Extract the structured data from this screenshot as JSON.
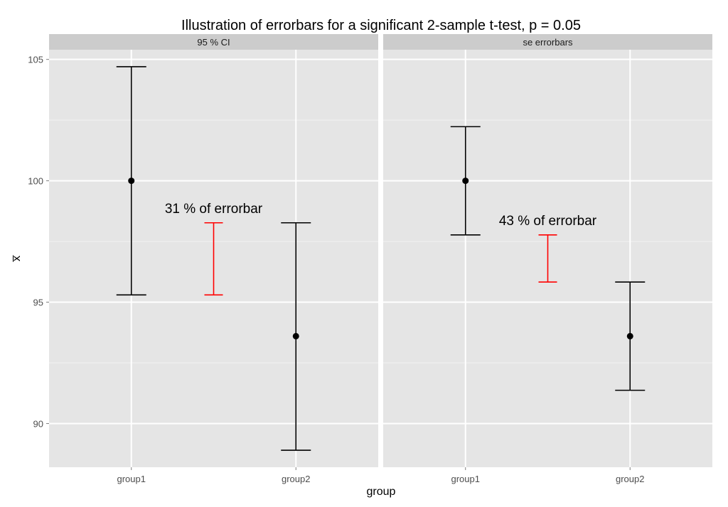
{
  "chart_data": {
    "type": "errorbar",
    "title": "Illustration of errorbars for a significant 2-sample t-test, p = 0.05",
    "xlabel": "group",
    "ylabel": "x̅",
    "ylim": [
      88.2,
      105.4
    ],
    "yticks": [
      90,
      95,
      100,
      105
    ],
    "categories": [
      "group1",
      "group2"
    ],
    "grid": true,
    "colors": {
      "panel_bg": "#e5e5e5",
      "strip_bg": "#cccccc",
      "grid_major": "#ffffff",
      "grid_minor": "#f2f2f2",
      "bar": "#000000",
      "diff": "#ff0000"
    },
    "panels": [
      {
        "strip": "95 % CI",
        "points": [
          {
            "x": "group1",
            "mean": 100.0,
            "lower": 95.3,
            "upper": 104.7
          },
          {
            "x": "group2",
            "mean": 93.6,
            "lower": 88.9,
            "upper": 98.27
          }
        ],
        "difference_bar": {
          "x": 1.5,
          "lower": 95.3,
          "upper": 98.27
        },
        "annotation": {
          "text": "31 % of errorbar",
          "x": 1.5,
          "y": 98.85
        }
      },
      {
        "strip": "se errorbars",
        "points": [
          {
            "x": "group1",
            "mean": 100.0,
            "lower": 97.77,
            "upper": 102.23
          },
          {
            "x": "group2",
            "mean": 93.6,
            "lower": 91.37,
            "upper": 95.83
          }
        ],
        "difference_bar": {
          "x": 1.5,
          "lower": 95.83,
          "upper": 97.77
        },
        "annotation": {
          "text": "43 % of errorbar",
          "x": 1.5,
          "y": 98.35
        }
      }
    ]
  }
}
